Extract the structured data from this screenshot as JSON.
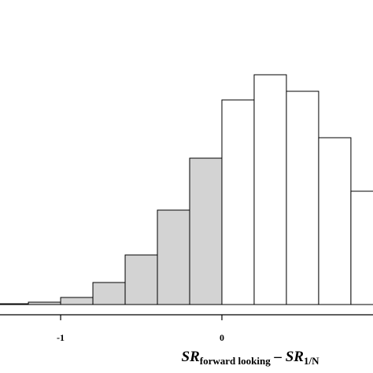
{
  "chart_data": {
    "type": "histogram",
    "bins": [
      -1.4,
      -1.2,
      -1.0,
      -0.8,
      -0.6,
      -0.4,
      -0.2,
      0,
      0.2,
      0.4,
      0.6,
      0.8,
      1.0
    ],
    "values": [
      1,
      3,
      9,
      28,
      63,
      120,
      186,
      260,
      292,
      271,
      212,
      144
    ],
    "colors": [
      "#d3d3d3",
      "#d3d3d3",
      "#d3d3d3",
      "#d3d3d3",
      "#d3d3d3",
      "#d3d3d3",
      "#d3d3d3",
      "#ffffff",
      "#ffffff",
      "#ffffff",
      "#ffffff",
      "#ffffff"
    ],
    "xlim": [
      -1.376,
      0.937
    ],
    "ylim": [
      0,
      300
    ],
    "xticks": [
      -1,
      0
    ],
    "x_label": {
      "main1": "SR",
      "sub1": "forward looking",
      "dash": " – ",
      "main2": "SR",
      "sub2": "1/N"
    }
  }
}
